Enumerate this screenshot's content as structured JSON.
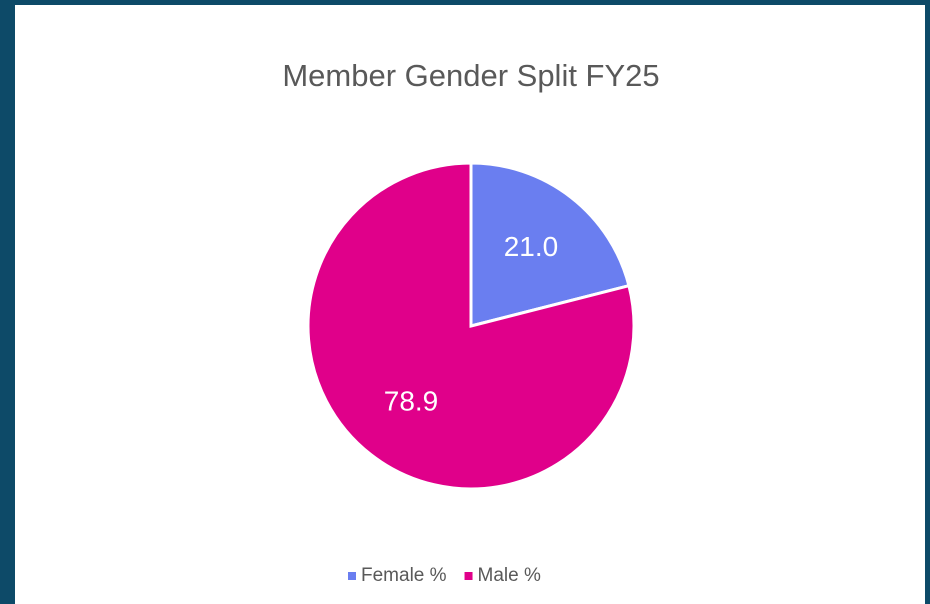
{
  "chart_data": {
    "type": "pie",
    "title": "Member Gender Split FY25",
    "categories": [
      "Female %",
      "Male %"
    ],
    "values": [
      21.0,
      78.9
    ],
    "value_labels": [
      "21.0",
      "78.9"
    ],
    "colors": [
      "#6a7ef0",
      "#e0008a"
    ],
    "legend": "bottom"
  }
}
